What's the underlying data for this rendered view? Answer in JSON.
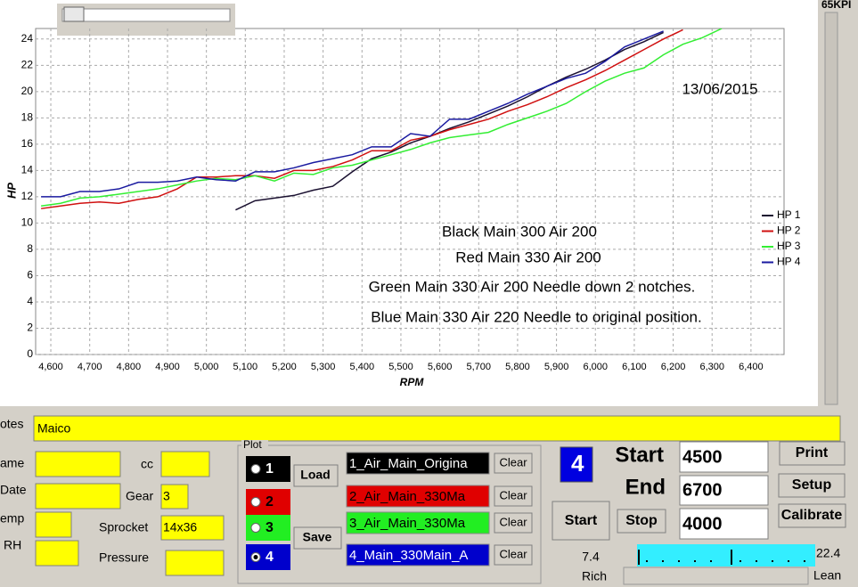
{
  "chart_data": {
    "type": "line",
    "x_label": "RPM",
    "y_label": "HP",
    "x": [
      4575,
      4625,
      4675,
      4725,
      4775,
      4825,
      4875,
      4925,
      4975,
      5025,
      5075,
      5125,
      5175,
      5225,
      5275,
      5325,
      5375,
      5425,
      5475,
      5525,
      5575,
      5625,
      5675,
      5725,
      5775,
      5825,
      5875,
      5925,
      5975,
      6025,
      6075,
      6125,
      6175,
      6225,
      6275,
      6325
    ],
    "series": [
      {
        "name": "HP 1",
        "color": "#1a1030",
        "values": [
          null,
          null,
          null,
          null,
          null,
          null,
          null,
          null,
          null,
          null,
          11.0,
          11.7,
          11.9,
          12.1,
          12.5,
          12.8,
          13.9,
          14.9,
          15.4,
          16.1,
          16.6,
          17.2,
          17.7,
          18.3,
          18.9,
          19.6,
          20.4,
          21.1,
          21.7,
          22.4,
          23.2,
          23.8,
          24.5,
          null,
          null,
          null
        ]
      },
      {
        "name": "HP 2",
        "color": "#d01010",
        "values": [
          11.1,
          11.3,
          11.5,
          11.6,
          11.5,
          11.8,
          12.0,
          12.6,
          13.5,
          13.5,
          13.6,
          13.6,
          13.4,
          14.0,
          14.0,
          14.3,
          14.8,
          15.5,
          15.5,
          16.3,
          16.6,
          17.1,
          17.5,
          17.9,
          18.5,
          19.0,
          19.6,
          20.3,
          20.9,
          21.6,
          22.4,
          23.2,
          24.0,
          24.7,
          null,
          null
        ]
      },
      {
        "name": "HP 3",
        "color": "#33ee33",
        "values": [
          11.3,
          11.5,
          11.9,
          12.0,
          12.2,
          12.4,
          12.6,
          12.9,
          13.2,
          13.4,
          13.3,
          13.6,
          13.2,
          13.8,
          13.7,
          14.2,
          14.4,
          14.8,
          15.2,
          15.6,
          16.1,
          16.5,
          16.7,
          16.9,
          17.5,
          18.0,
          18.5,
          19.1,
          20.0,
          20.8,
          21.4,
          21.8,
          22.8,
          23.6,
          24.1,
          24.8
        ]
      },
      {
        "name": "HP 4",
        "color": "#1a1aa0",
        "values": [
          12.0,
          12.0,
          12.4,
          12.4,
          12.6,
          13.1,
          13.1,
          13.2,
          13.5,
          13.3,
          13.2,
          13.9,
          13.9,
          14.2,
          14.6,
          14.9,
          15.2,
          15.8,
          15.8,
          16.8,
          16.6,
          17.9,
          17.9,
          18.5,
          19.1,
          19.8,
          20.4,
          21.0,
          21.4,
          22.3,
          23.4,
          24.0,
          24.6,
          null,
          null,
          null
        ]
      }
    ],
    "xlim": [
      4561,
      6485
    ],
    "ylim": [
      0,
      24.8
    ],
    "xticks": [
      {
        "value": 4600,
        "label": "4,600"
      },
      {
        "value": 4700,
        "label": "4,700"
      },
      {
        "value": 4800,
        "label": "4,800"
      },
      {
        "value": 4900,
        "label": "4,900"
      },
      {
        "value": 5000,
        "label": "5,000"
      },
      {
        "value": 5100,
        "label": "5,100"
      },
      {
        "value": 5200,
        "label": "5,200"
      },
      {
        "value": 5300,
        "label": "5,300"
      },
      {
        "value": 5400,
        "label": "5,400"
      },
      {
        "value": 5500,
        "label": "5,500"
      },
      {
        "value": 5600,
        "label": "5,600"
      },
      {
        "value": 5700,
        "label": "5,700"
      },
      {
        "value": 5800,
        "label": "5,800"
      },
      {
        "value": 5900,
        "label": "5,900"
      },
      {
        "value": 6000,
        "label": "6,000"
      },
      {
        "value": 6100,
        "label": "6,100"
      },
      {
        "value": 6200,
        "label": "6,200"
      },
      {
        "value": 6300,
        "label": "6,300"
      },
      {
        "value": 6400,
        "label": "6,400"
      }
    ],
    "yticks": [
      0,
      2,
      4,
      6,
      8,
      10,
      12,
      14,
      16,
      18,
      20,
      22,
      24
    ],
    "grid": true,
    "annotations": [
      "13/06/2015",
      "Black Main 300 Air 200",
      "Red Main 330 Air 200",
      "Green Main 330 Air 200 Needle down 2 notches.",
      "Blue Main 330 Air 220 Needle to original position."
    ]
  },
  "side_label": "65KPI",
  "form": {
    "notes_label": "otes",
    "notes": "Maico",
    "name_label": "ame",
    "date_label": "Date",
    "temp_label": "emp",
    "rh_label": "RH",
    "cc_label": "cc",
    "gear_label": "Gear",
    "gear": "3",
    "sprocket_label": "Sprocket",
    "sprocket": "14x36",
    "pressure_label": "Pressure"
  },
  "plot_group": {
    "title": "Plot",
    "slots": [
      "1",
      "2",
      "3",
      "4"
    ],
    "load": "Load",
    "save": "Save",
    "files": [
      "1_Air_Main_Origina",
      "2_Air_Main_330Ma",
      "3_Air_Main_330Ma",
      "4_Main_330Main_A"
    ],
    "clear": "Clear"
  },
  "run": {
    "selected": "4",
    "start_label": "Start",
    "end_label": "End",
    "start": "4500",
    "end": "6700",
    "third": "4000",
    "start_button": "Start",
    "stop_button": "Stop",
    "print": "Print",
    "setup": "Setup",
    "calibrate": "Calibrate",
    "afr_min": "7.4",
    "afr_max": "22.4",
    "rich": "Rich",
    "lean": "Lean"
  }
}
